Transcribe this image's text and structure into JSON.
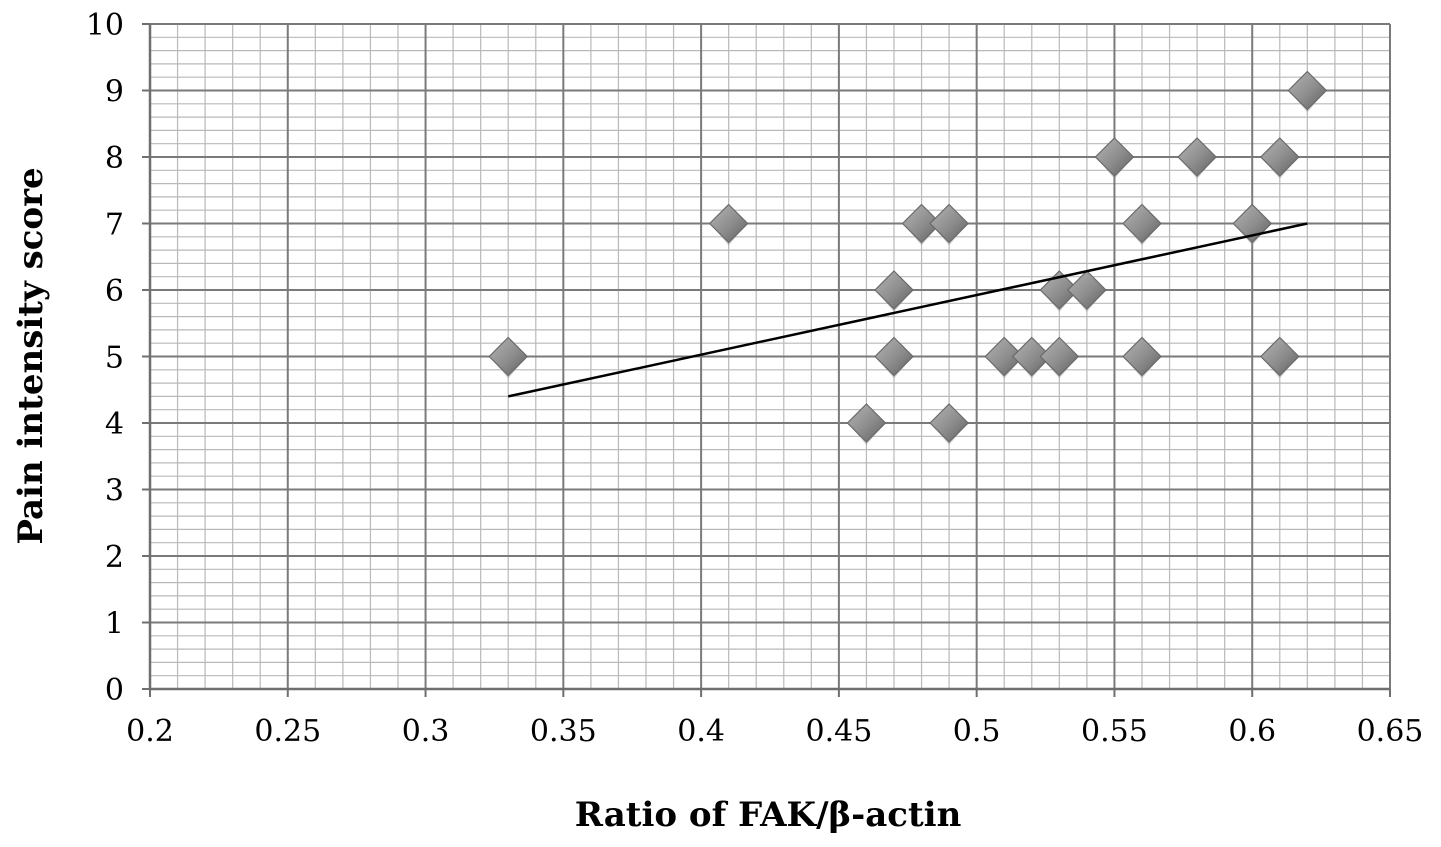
{
  "chart_data": {
    "type": "scatter",
    "title": "",
    "xlabel": "Ratio of FAK/β-actin",
    "ylabel": "Pain intensity score",
    "xlim": [
      0.2,
      0.65
    ],
    "ylim": [
      0,
      10
    ],
    "x_ticks": [
      "0.2",
      "0.25",
      "0.3",
      "0.35",
      "0.4",
      "0.45",
      "0.5",
      "0.55",
      "0.6",
      "0.65"
    ],
    "y_ticks": [
      "0",
      "1",
      "2",
      "3",
      "4",
      "5",
      "6",
      "7",
      "8",
      "9",
      "10"
    ],
    "grid": true,
    "legend": "none",
    "marker": "diamond",
    "marker_color": "#8c8c8c",
    "series": [
      {
        "points": [
          {
            "x": 0.33,
            "y": 5
          },
          {
            "x": 0.41,
            "y": 7
          },
          {
            "x": 0.46,
            "y": 4
          },
          {
            "x": 0.47,
            "y": 6
          },
          {
            "x": 0.47,
            "y": 5
          },
          {
            "x": 0.48,
            "y": 7
          },
          {
            "x": 0.49,
            "y": 7
          },
          {
            "x": 0.49,
            "y": 4
          },
          {
            "x": 0.51,
            "y": 5
          },
          {
            "x": 0.52,
            "y": 5
          },
          {
            "x": 0.53,
            "y": 6
          },
          {
            "x": 0.53,
            "y": 5
          },
          {
            "x": 0.54,
            "y": 6
          },
          {
            "x": 0.55,
            "y": 8
          },
          {
            "x": 0.56,
            "y": 7
          },
          {
            "x": 0.56,
            "y": 5
          },
          {
            "x": 0.58,
            "y": 8
          },
          {
            "x": 0.6,
            "y": 7
          },
          {
            "x": 0.61,
            "y": 8
          },
          {
            "x": 0.61,
            "y": 5
          },
          {
            "x": 0.62,
            "y": 9
          }
        ]
      }
    ],
    "trendline": {
      "type": "linear",
      "x": [
        0.33,
        0.62
      ],
      "y": [
        4.4,
        7.0
      ],
      "color": "#000000"
    }
  }
}
